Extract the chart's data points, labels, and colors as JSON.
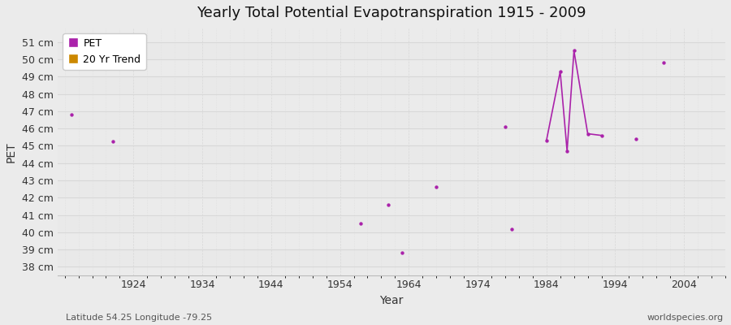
{
  "title": "Yearly Total Potential Evapotranspiration 1915 - 2009",
  "xlabel": "Year",
  "ylabel": "PET",
  "footnote_left": "Latitude 54.25 Longitude -79.25",
  "footnote_right": "worldspecies.org",
  "xlim": [
    1913,
    2010
  ],
  "ylim": [
    37.5,
    51.8
  ],
  "yticks": [
    38,
    39,
    40,
    41,
    42,
    43,
    44,
    45,
    46,
    47,
    48,
    49,
    50,
    51
  ],
  "ytick_labels": [
    "38 cm",
    "39 cm",
    "40 cm",
    "41 cm",
    "42 cm",
    "43 cm",
    "44 cm",
    "45 cm",
    "46 cm",
    "47 cm",
    "48 cm",
    "49 cm",
    "50 cm",
    "51 cm"
  ],
  "xticks": [
    1924,
    1934,
    1944,
    1954,
    1964,
    1974,
    1984,
    1994,
    2004
  ],
  "pet_color": "#aa22aa",
  "trend_color": "#cc8800",
  "bg_color": "#ebebeb",
  "plot_bg": "#ebebeb",
  "grid_major_color": "#d8d8d8",
  "grid_minor_color": "#e2e2e2",
  "scatter_only": [
    [
      1915,
      46.8
    ],
    [
      1921,
      45.25
    ],
    [
      1957,
      40.5
    ],
    [
      1961,
      41.6
    ],
    [
      1963,
      38.8
    ],
    [
      1968,
      42.6
    ],
    [
      1978,
      46.1
    ],
    [
      1979,
      40.2
    ],
    [
      1997,
      45.4
    ],
    [
      2001,
      49.8
    ]
  ],
  "line_points": [
    [
      1984,
      45.3
    ],
    [
      1986,
      49.3
    ],
    [
      1987,
      44.7
    ],
    [
      1988,
      50.5
    ],
    [
      1990,
      45.7
    ],
    [
      1992,
      45.6
    ]
  ]
}
